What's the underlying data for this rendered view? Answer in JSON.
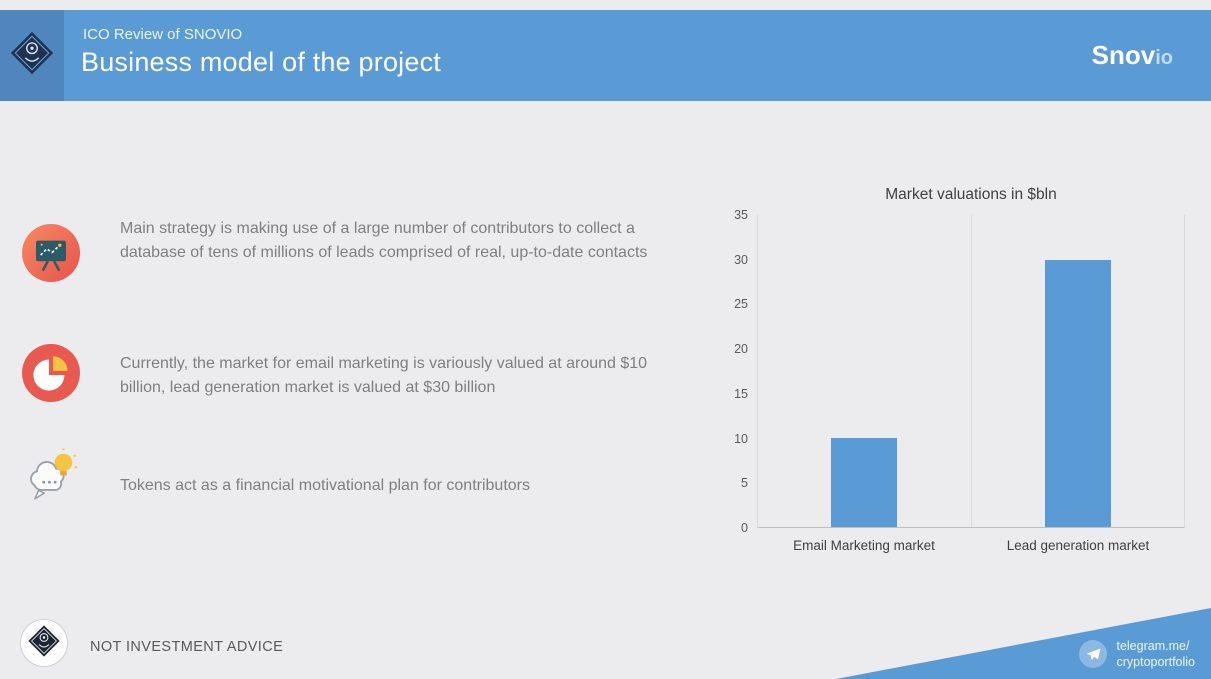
{
  "header": {
    "kicker": "ICO Review of SNOVIO",
    "title": "Business model of the project",
    "brand": "Snov",
    "brand_suffix": "io"
  },
  "bullets": [
    {
      "icon": "strategy-board-icon",
      "text": "Main strategy is making use of a large number of contributors to collect a database of tens of millions of leads comprised of real, up-to-date contacts"
    },
    {
      "icon": "pie-chart-icon",
      "text": "Currently, the market for email marketing is variously valued at around $10 billion, lead generation market is valued at $30 billion"
    },
    {
      "icon": "idea-bulb-speech-icon",
      "text": "Tokens act as a financial motivational plan for contributors"
    }
  ],
  "chart_data": {
    "type": "bar",
    "title": "Market valuations in $bln",
    "categories": [
      "Email Marketing market",
      "Lead generation market"
    ],
    "values": [
      10,
      30
    ],
    "ylim": [
      0,
      35
    ],
    "yticks": [
      0,
      5,
      10,
      15,
      20,
      25,
      30,
      35
    ],
    "xlabel": "",
    "ylabel": "",
    "bar_color": "#5b9bd5",
    "grid": "vertical category boundaries, light gray",
    "legend": "none"
  },
  "footer": {
    "disclaimer": "NOT INVESTMENT ADVICE",
    "ribbon_line1": "telegram.me/",
    "ribbon_line2": "cryptoportfolio"
  },
  "colors": {
    "accent_blue": "#5b9bd5",
    "background_gray": "#ececee",
    "text_gray": "#7f7f7f"
  }
}
